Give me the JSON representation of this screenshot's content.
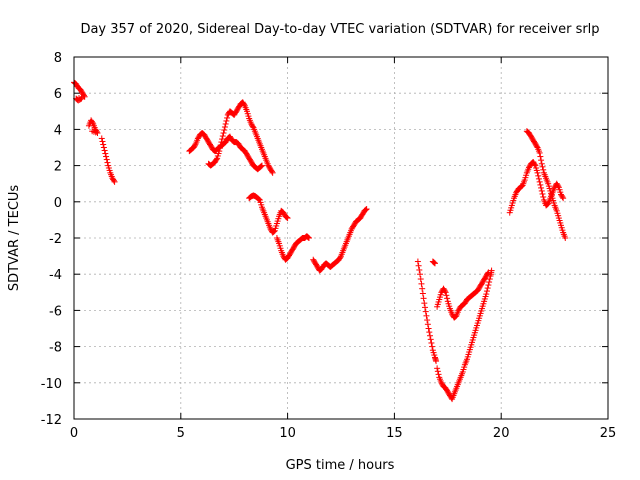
{
  "chart_data": {
    "type": "scatter",
    "title": "Day 357 of 2020, Sidereal Day-to-day VTEC variation (SDTVAR) for receiver srlp",
    "xlabel": "GPS time / hours",
    "ylabel": "SDTVAR / TECUs",
    "xlim": [
      0,
      25
    ],
    "ylim": [
      -12,
      8
    ],
    "x_ticks": [
      0,
      5,
      10,
      15,
      20,
      25
    ],
    "y_ticks": [
      -12,
      -10,
      -8,
      -6,
      -4,
      -2,
      0,
      2,
      4,
      6,
      8
    ],
    "x_tick_labels": [
      "0",
      "5",
      "10",
      "15",
      "20",
      "25"
    ],
    "y_tick_labels": [
      "-12",
      "-10",
      "-8",
      "-6",
      "-4",
      "-2",
      "0",
      "2",
      "4",
      "6",
      "8"
    ],
    "grid": true,
    "marker": "+",
    "series_color": "#ff0000",
    "segments": [
      [
        [
          0.0,
          6.6
        ],
        [
          0.1,
          6.5
        ],
        [
          0.2,
          6.3
        ],
        [
          0.3,
          6.2
        ],
        [
          0.4,
          6.0
        ],
        [
          0.5,
          5.8
        ],
        [
          0.1,
          5.7
        ],
        [
          0.2,
          5.6
        ],
        [
          0.35,
          5.7
        ]
      ],
      [
        [
          0.7,
          4.2
        ],
        [
          0.8,
          4.5
        ],
        [
          0.9,
          4.3
        ],
        [
          1.0,
          4.0
        ],
        [
          1.1,
          3.8
        ],
        [
          0.85,
          3.9
        ]
      ],
      [
        [
          1.3,
          3.5
        ],
        [
          1.4,
          3.0
        ],
        [
          1.5,
          2.5
        ],
        [
          1.6,
          2.0
        ],
        [
          1.7,
          1.6
        ],
        [
          1.8,
          1.3
        ],
        [
          1.9,
          1.1
        ]
      ],
      [
        [
          5.4,
          2.8
        ],
        [
          5.5,
          2.9
        ],
        [
          5.6,
          3.0
        ],
        [
          5.7,
          3.2
        ],
        [
          5.8,
          3.5
        ],
        [
          5.9,
          3.7
        ],
        [
          6.0,
          3.8
        ],
        [
          6.1,
          3.7
        ],
        [
          6.2,
          3.5
        ],
        [
          6.3,
          3.3
        ],
        [
          6.4,
          3.1
        ],
        [
          6.5,
          2.9
        ],
        [
          6.6,
          2.8
        ],
        [
          6.7,
          2.9
        ],
        [
          6.8,
          3.0
        ],
        [
          6.9,
          3.1
        ],
        [
          7.0,
          3.2
        ],
        [
          7.1,
          3.3
        ],
        [
          7.2,
          3.5
        ],
        [
          7.3,
          3.6
        ],
        [
          7.4,
          3.4
        ],
        [
          7.5,
          3.3
        ],
        [
          7.6,
          3.3
        ],
        [
          7.7,
          3.2
        ],
        [
          7.8,
          3.0
        ],
        [
          7.9,
          2.9
        ],
        [
          8.0,
          2.8
        ],
        [
          8.1,
          2.6
        ],
        [
          8.2,
          2.4
        ],
        [
          8.3,
          2.2
        ],
        [
          8.4,
          2.0
        ],
        [
          8.5,
          1.9
        ],
        [
          8.6,
          1.8
        ],
        [
          8.7,
          1.9
        ],
        [
          8.8,
          2.0
        ]
      ],
      [
        [
          6.3,
          2.1
        ],
        [
          6.4,
          2.0
        ],
        [
          6.5,
          2.1
        ],
        [
          6.6,
          2.2
        ],
        [
          6.7,
          2.4
        ],
        [
          6.8,
          2.8
        ],
        [
          6.9,
          3.3
        ],
        [
          7.0,
          3.8
        ],
        [
          7.1,
          4.3
        ],
        [
          7.2,
          4.8
        ],
        [
          7.3,
          5.0
        ],
        [
          7.4,
          4.9
        ],
        [
          7.5,
          4.8
        ],
        [
          7.6,
          5.0
        ],
        [
          7.7,
          5.2
        ],
        [
          7.8,
          5.4
        ],
        [
          7.9,
          5.5
        ],
        [
          8.0,
          5.3
        ],
        [
          8.1,
          5.0
        ],
        [
          8.2,
          4.6
        ],
        [
          8.3,
          4.3
        ],
        [
          8.4,
          4.1
        ],
        [
          8.5,
          3.8
        ],
        [
          8.6,
          3.5
        ],
        [
          8.7,
          3.2
        ],
        [
          8.8,
          2.9
        ],
        [
          8.9,
          2.6
        ],
        [
          9.0,
          2.3
        ],
        [
          9.1,
          2.0
        ],
        [
          9.2,
          1.8
        ],
        [
          9.3,
          1.6
        ]
      ],
      [
        [
          8.2,
          0.2
        ],
        [
          8.3,
          0.3
        ],
        [
          8.4,
          0.35
        ],
        [
          8.5,
          0.3
        ],
        [
          8.6,
          0.2
        ],
        [
          8.7,
          0.1
        ],
        [
          8.8,
          -0.3
        ],
        [
          8.9,
          -0.6
        ],
        [
          9.0,
          -0.9
        ],
        [
          9.1,
          -1.2
        ],
        [
          9.2,
          -1.5
        ],
        [
          9.3,
          -1.7
        ],
        [
          9.4,
          -1.6
        ],
        [
          9.5,
          -1.2
        ],
        [
          9.6,
          -0.8
        ],
        [
          9.7,
          -0.5
        ],
        [
          9.8,
          -0.6
        ],
        [
          9.9,
          -0.8
        ],
        [
          10.0,
          -0.9
        ]
      ],
      [
        [
          9.5,
          -2.0
        ],
        [
          9.6,
          -2.3
        ],
        [
          9.7,
          -2.7
        ],
        [
          9.8,
          -3.0
        ],
        [
          9.9,
          -3.2
        ],
        [
          10.0,
          -3.1
        ],
        [
          10.1,
          -2.9
        ],
        [
          10.2,
          -2.7
        ],
        [
          10.3,
          -2.5
        ],
        [
          10.4,
          -2.3
        ],
        [
          10.5,
          -2.2
        ],
        [
          10.6,
          -2.1
        ],
        [
          10.7,
          -2.0
        ],
        [
          10.8,
          -2.0
        ],
        [
          10.9,
          -1.9
        ],
        [
          11.0,
          -2.0
        ]
      ],
      [
        [
          11.2,
          -3.2
        ],
        [
          11.3,
          -3.4
        ],
        [
          11.4,
          -3.6
        ],
        [
          11.5,
          -3.8
        ],
        [
          11.6,
          -3.7
        ],
        [
          11.7,
          -3.5
        ],
        [
          11.8,
          -3.4
        ],
        [
          11.9,
          -3.5
        ],
        [
          12.0,
          -3.6
        ],
        [
          12.1,
          -3.5
        ],
        [
          12.2,
          -3.4
        ],
        [
          12.3,
          -3.3
        ],
        [
          12.4,
          -3.2
        ],
        [
          12.5,
          -3.0
        ],
        [
          12.6,
          -2.7
        ],
        [
          12.7,
          -2.4
        ],
        [
          12.8,
          -2.1
        ],
        [
          12.9,
          -1.8
        ],
        [
          13.0,
          -1.5
        ],
        [
          13.1,
          -1.3
        ],
        [
          13.2,
          -1.1
        ],
        [
          13.3,
          -1.0
        ],
        [
          13.4,
          -0.9
        ],
        [
          13.5,
          -0.7
        ],
        [
          13.6,
          -0.5
        ],
        [
          13.7,
          -0.4
        ]
      ],
      [
        [
          16.1,
          -3.3
        ],
        [
          16.2,
          -4.0
        ],
        [
          16.3,
          -4.8
        ],
        [
          16.4,
          -5.6
        ],
        [
          16.5,
          -6.3
        ],
        [
          16.6,
          -7.0
        ],
        [
          16.7,
          -7.6
        ],
        [
          16.8,
          -8.2
        ],
        [
          16.9,
          -8.6
        ],
        [
          16.95,
          -8.8
        ]
      ],
      [
        [
          16.8,
          -3.3
        ],
        [
          16.9,
          -3.4
        ]
      ],
      [
        [
          17.0,
          -9.2
        ],
        [
          17.1,
          -9.7
        ],
        [
          17.2,
          -10.0
        ],
        [
          17.3,
          -10.2
        ],
        [
          17.4,
          -10.3
        ],
        [
          17.5,
          -10.5
        ],
        [
          17.6,
          -10.7
        ],
        [
          17.7,
          -10.9
        ],
        [
          17.8,
          -10.6
        ],
        [
          17.9,
          -10.3
        ],
        [
          18.0,
          -10.0
        ],
        [
          18.1,
          -9.7
        ],
        [
          18.2,
          -9.4
        ],
        [
          18.3,
          -9.0
        ],
        [
          18.4,
          -8.7
        ],
        [
          18.5,
          -8.3
        ],
        [
          18.6,
          -7.9
        ],
        [
          18.7,
          -7.5
        ],
        [
          18.8,
          -7.1
        ],
        [
          18.9,
          -6.7
        ],
        [
          19.0,
          -6.3
        ],
        [
          19.1,
          -5.9
        ],
        [
          19.2,
          -5.5
        ],
        [
          19.3,
          -5.1
        ],
        [
          19.4,
          -4.6
        ],
        [
          19.5,
          -4.1
        ],
        [
          19.55,
          -3.8
        ]
      ],
      [
        [
          17.0,
          -5.8
        ],
        [
          17.1,
          -5.4
        ],
        [
          17.2,
          -5.0
        ],
        [
          17.3,
          -4.8
        ],
        [
          17.4,
          -5.0
        ],
        [
          17.5,
          -5.5
        ],
        [
          17.6,
          -5.9
        ],
        [
          17.7,
          -6.2
        ],
        [
          17.8,
          -6.4
        ],
        [
          17.9,
          -6.3
        ],
        [
          18.0,
          -6.0
        ],
        [
          18.1,
          -5.8
        ],
        [
          18.2,
          -5.7
        ],
        [
          18.3,
          -5.6
        ],
        [
          18.4,
          -5.4
        ],
        [
          18.5,
          -5.3
        ],
        [
          18.6,
          -5.2
        ],
        [
          18.7,
          -5.1
        ],
        [
          18.8,
          -5.0
        ],
        [
          18.9,
          -4.9
        ],
        [
          19.0,
          -4.7
        ],
        [
          19.1,
          -4.5
        ],
        [
          19.2,
          -4.3
        ],
        [
          19.3,
          -4.1
        ],
        [
          19.4,
          -3.9
        ]
      ],
      [
        [
          20.4,
          -0.6
        ],
        [
          20.5,
          -0.2
        ],
        [
          20.6,
          0.2
        ],
        [
          20.7,
          0.5
        ],
        [
          20.8,
          0.7
        ],
        [
          20.9,
          0.8
        ],
        [
          21.0,
          0.9
        ],
        [
          21.1,
          1.2
        ],
        [
          21.2,
          1.6
        ],
        [
          21.3,
          1.9
        ],
        [
          21.4,
          2.1
        ],
        [
          21.5,
          2.2
        ],
        [
          21.6,
          2.0
        ],
        [
          21.7,
          1.6
        ],
        [
          21.8,
          1.1
        ],
        [
          21.9,
          0.6
        ],
        [
          22.0,
          0.1
        ],
        [
          22.1,
          -0.2
        ],
        [
          22.2,
          -0.1
        ],
        [
          22.3,
          0.2
        ],
        [
          22.4,
          0.5
        ],
        [
          22.5,
          0.8
        ],
        [
          22.6,
          1.0
        ],
        [
          22.7,
          0.8
        ],
        [
          22.8,
          0.4
        ],
        [
          22.9,
          0.2
        ]
      ],
      [
        [
          21.2,
          3.9
        ],
        [
          21.3,
          3.8
        ],
        [
          21.4,
          3.6
        ],
        [
          21.5,
          3.4
        ],
        [
          21.6,
          3.2
        ],
        [
          21.7,
          3.0
        ],
        [
          21.8,
          2.7
        ],
        [
          21.9,
          2.1
        ],
        [
          22.0,
          1.6
        ],
        [
          22.1,
          1.3
        ],
        [
          22.2,
          1.0
        ],
        [
          22.3,
          0.6
        ],
        [
          22.4,
          0.2
        ],
        [
          22.5,
          -0.2
        ],
        [
          22.6,
          -0.5
        ],
        [
          22.7,
          -0.9
        ],
        [
          22.8,
          -1.3
        ],
        [
          22.9,
          -1.7
        ],
        [
          23.0,
          -2.0
        ]
      ]
    ]
  }
}
